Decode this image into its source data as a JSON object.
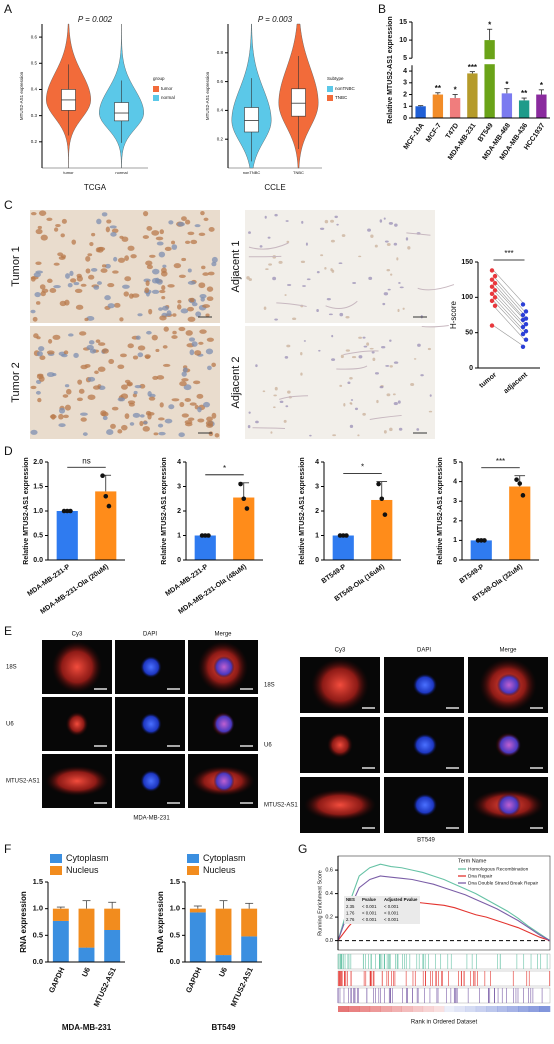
{
  "panel_labels": [
    "A",
    "B",
    "C",
    "D",
    "E",
    "F",
    "G"
  ],
  "ihc_labels": [
    "Tumor 1",
    "Tumor 2",
    "Adjacent 1",
    "Adjacent 2"
  ],
  "if_panels": [
    {
      "columns": [
        "Cy3",
        "DAPI",
        "Merge"
      ],
      "rows": [
        "18S",
        "U6",
        "MTUS2-AS1"
      ],
      "caption": "MDA-MB-231"
    },
    {
      "columns": [
        "Cy3",
        "DAPI",
        "Merge"
      ],
      "rows": [
        "18S",
        "U6",
        "MTUS2-AS1"
      ],
      "caption": "BT549"
    }
  ],
  "chart_data": [
    {
      "type": "violin",
      "xlabel": "TCGA",
      "ylabel": "MTUS2-AS1 expression",
      "annotation": "P = 0.002",
      "legend_title": "group",
      "categories": [
        "tumor",
        "normal"
      ],
      "colors": [
        "#f26b3a",
        "#5bc8e8"
      ],
      "values": [
        0.36,
        0.31
      ],
      "q1": [
        0.32,
        0.28
      ],
      "q3": [
        0.4,
        0.35
      ],
      "ylim": [
        0.1,
        0.65
      ],
      "yticks": [
        0.2,
        0.3,
        0.4,
        0.5,
        0.6
      ]
    },
    {
      "type": "violin",
      "xlabel": "CCLE",
      "ylabel": "MTUS2-AS1 expression",
      "annotation": "P = 0.003",
      "legend_title": "Subtype",
      "categories": [
        "nonTNBC",
        "TNBC"
      ],
      "colors": [
        "#5bc8e8",
        "#f26b3a"
      ],
      "values": [
        0.33,
        0.45
      ],
      "q1": [
        0.25,
        0.36
      ],
      "q3": [
        0.42,
        0.55
      ],
      "ylim": [
        0,
        1
      ],
      "yticks": [
        0.2,
        0.4,
        0.6,
        0.8
      ]
    },
    {
      "type": "bar",
      "ylabel": "Relative MTUS2-AS1 expression",
      "categories": [
        "MCF-10A",
        "MCF-7",
        "T47D",
        "MDA-MB-231",
        "BT549",
        "MDA-MB-468",
        "MDA-MB-436",
        "HCC1937"
      ],
      "values": [
        1,
        2,
        1.7,
        3.8,
        10,
        2.1,
        1.5,
        2
      ],
      "errors": [
        0.05,
        0.15,
        0.3,
        0.15,
        3,
        0.4,
        0.2,
        0.4
      ],
      "annotations": [
        null,
        "**",
        "*",
        "***",
        "*",
        "*",
        "**",
        "*"
      ],
      "colors": [
        "#1f5fd6",
        "#f28c28",
        "#f07d7d",
        "#b59b2a",
        "#6aa318",
        "#7b7bf0",
        "#1e9b8a",
        "#8a2b9e"
      ],
      "ylim": [
        0,
        15
      ],
      "axis_break": [
        4.5,
        5
      ],
      "yticks": [
        0,
        1,
        2,
        3,
        4,
        5,
        10,
        15
      ]
    },
    {
      "type": "paired",
      "ylabel": "H-score",
      "annotation": "***",
      "series": [
        {
          "name": "tumor",
          "color": "#e8383d",
          "values": [
            138,
            130,
            125,
            120,
            115,
            110,
            105,
            100,
            95,
            88,
            60
          ]
        },
        {
          "name": "adjacent",
          "color": "#2b3fd6",
          "values": [
            90,
            80,
            75,
            70,
            68,
            62,
            58,
            52,
            48,
            40,
            30
          ]
        }
      ],
      "ylim": [
        0,
        150
      ],
      "yticks": [
        0,
        50,
        100,
        150
      ]
    },
    {
      "type": "bar",
      "ylabel": "Relative MTUS2-AS1 expression",
      "annotation": "ns",
      "categories": [
        "MDA-MB-231-P",
        "MDA-MB-231-Ola (20uM)"
      ],
      "values": [
        1,
        1.4
      ],
      "errors": [
        0.01,
        0.33
      ],
      "points": [
        [
          1,
          1,
          1
        ],
        [
          1.72,
          1.3,
          1.1
        ]
      ],
      "colors": [
        "#2f7bf0",
        "#ff8c1a"
      ],
      "ylim": [
        0,
        2
      ],
      "yticks": [
        {
          "value": 0,
          "label": "0.0"
        },
        0.5,
        {
          "value": 1,
          "label": "1.0"
        },
        1.5,
        {
          "value": 2,
          "label": "2.0"
        }
      ]
    },
    {
      "type": "bar",
      "ylabel": "Relative MTUS2-AS1 expression",
      "annotation": "*",
      "categories": [
        "MDA-MB-231-P",
        "MDA-MB-231-Ola (48uM)"
      ],
      "values": [
        1,
        2.55
      ],
      "errors": [
        0.02,
        0.6
      ],
      "points": [
        [
          1,
          1,
          1
        ],
        [
          3.1,
          2.5,
          2.1
        ]
      ],
      "colors": [
        "#2f7bf0",
        "#ff8c1a"
      ],
      "ylim": [
        0,
        4
      ],
      "yticks": [
        0,
        1,
        2,
        3,
        4
      ]
    },
    {
      "type": "bar",
      "ylabel": "Relative MTUS2-AS1 expression",
      "annotation": "*",
      "categories": [
        "BT549-P",
        "BT549-Ola (16uM)"
      ],
      "values": [
        1,
        2.45
      ],
      "errors": [
        0.02,
        0.75
      ],
      "points": [
        [
          1,
          1,
          1
        ],
        [
          3.1,
          2.5,
          1.85
        ]
      ],
      "colors": [
        "#2f7bf0",
        "#ff8c1a"
      ],
      "ylim": [
        0,
        4
      ],
      "yticks": [
        0,
        1,
        2,
        3,
        4
      ]
    },
    {
      "type": "bar",
      "ylabel": "Relative MTUS2-AS1 expression",
      "annotation": "***",
      "categories": [
        "BT549-P",
        "BT549-Ola (32uM)"
      ],
      "values": [
        1,
        3.75
      ],
      "errors": [
        0.02,
        0.55
      ],
      "points": [
        [
          1,
          1,
          1
        ],
        [
          4.1,
          3.9,
          3.3
        ]
      ],
      "colors": [
        "#2f7bf0",
        "#ff8c1a"
      ],
      "ylim": [
        0,
        5
      ],
      "yticks": [
        0,
        1,
        2,
        3,
        4,
        5
      ]
    },
    {
      "type": "stacked",
      "xlabel": "MDA-MB-231",
      "ylabel": "RNA expression",
      "categories": [
        "GAPDH",
        "U6",
        "MTUS2-AS1"
      ],
      "series": [
        {
          "name": "Cytoplasm",
          "color": "#3b8fe0",
          "values": [
            0.77,
            0.27,
            0.6
          ],
          "errors": [
            0.04,
            0.12,
            0.1
          ]
        },
        {
          "name": "Nucleus",
          "color": "#f28c1e",
          "values": [
            0.23,
            0.73,
            0.4
          ],
          "errors": [
            0.03,
            0.15,
            0.12
          ]
        }
      ],
      "ylim": [
        0,
        1.5
      ],
      "yticks": [
        {
          "value": 0,
          "label": "0.0"
        },
        0.5,
        {
          "value": 1,
          "label": "1.0"
        },
        1.5
      ]
    },
    {
      "type": "stacked",
      "xlabel": "BT549",
      "ylabel": "RNA expression",
      "categories": [
        "GAPDH",
        "U6",
        "MTUS2-AS1"
      ],
      "series": [
        {
          "name": "Cytoplasm",
          "color": "#3b8fe0",
          "values": [
            0.93,
            0.13,
            0.48
          ],
          "errors": [
            0.04,
            0.13,
            0.09
          ]
        },
        {
          "name": "Nucleus",
          "color": "#f28c1e",
          "values": [
            0.07,
            0.87,
            0.52
          ],
          "errors": [
            0.05,
            0.15,
            0.1
          ]
        }
      ],
      "ylim": [
        0,
        1.5
      ],
      "yticks": [
        {
          "value": 0,
          "label": "0.0"
        },
        0.5,
        {
          "value": 1,
          "label": "1.0"
        },
        1.5
      ]
    },
    {
      "type": "gsea",
      "ylabel": "Running Enrichment Score",
      "xlabel": "Rank in Ordered Dataset",
      "legend_title": "Term Name",
      "x": [
        0,
        5,
        10,
        15,
        20,
        25,
        30,
        35,
        40,
        45,
        50,
        55,
        60,
        65,
        70,
        75,
        80,
        85,
        90,
        95,
        100
      ],
      "xlim": [
        0,
        100
      ],
      "ylim": [
        -0.08,
        0.72
      ],
      "yticks": [
        {
          "value": 0,
          "label": "0.0"
        },
        0.2,
        0.4,
        0.6
      ],
      "series": [
        {
          "name": "Homologous Recombination",
          "color": "#66c2a5",
          "values": [
            0,
            0.3,
            0.55,
            0.62,
            0.65,
            0.63,
            0.62,
            0.6,
            0.58,
            0.55,
            0.52,
            0.48,
            0.44,
            0.4,
            0.35,
            0.3,
            0.25,
            0.19,
            0.12,
            0.06,
            0
          ]
        },
        {
          "name": "Dna Repair",
          "color": "#e3342f",
          "values": [
            0,
            0.12,
            0.22,
            0.28,
            0.32,
            0.33,
            0.34,
            0.33,
            0.32,
            0.31,
            0.3,
            0.28,
            0.25,
            0.22,
            0.2,
            0.17,
            0.14,
            0.11,
            0.07,
            0.03,
            0
          ]
        },
        {
          "name": "Dna Double Strand Break Repair",
          "color": "#7b5ea7",
          "values": [
            0,
            0.25,
            0.45,
            0.52,
            0.55,
            0.54,
            0.53,
            0.52,
            0.5,
            0.48,
            0.45,
            0.42,
            0.39,
            0.35,
            0.31,
            0.27,
            0.22,
            0.17,
            0.11,
            0.05,
            0
          ]
        }
      ],
      "table": {
        "header": [
          "NES",
          "Pvalue",
          "Adjusted Pvalue"
        ],
        "rows": [
          [
            "2.35",
            "< 0.001",
            "< 0.001"
          ],
          [
            "1.76",
            "< 0.001",
            "< 0.001"
          ],
          [
            "2.76",
            "< 0.001",
            "< 0.001"
          ]
        ]
      }
    }
  ]
}
